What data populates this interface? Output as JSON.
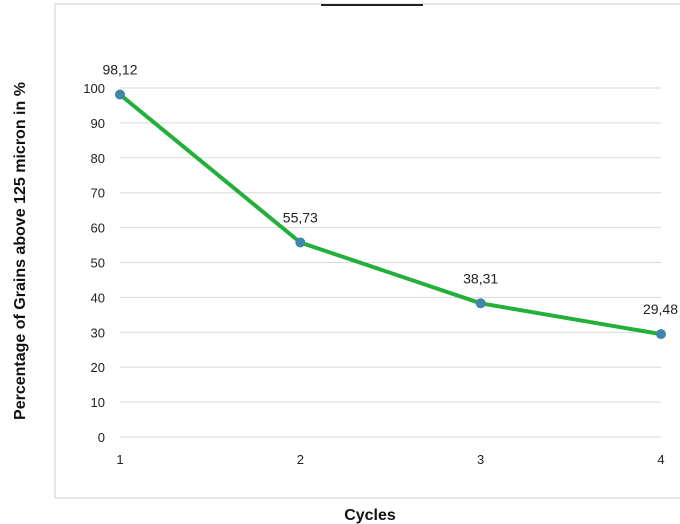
{
  "chart_data": {
    "type": "line",
    "xlabel": "Cycles",
    "ylabel": "Percentage of Grains above 125 micron in %",
    "x": [
      1,
      2,
      3,
      4
    ],
    "x_tick_labels": [
      "1",
      "2",
      "3",
      "4"
    ],
    "y_ticks": [
      0,
      10,
      20,
      30,
      40,
      50,
      60,
      70,
      80,
      90,
      100
    ],
    "ylim": [
      0,
      100
    ],
    "grid": "horizontal",
    "series": [
      {
        "values": [
          98.12,
          55.73,
          38.31,
          29.48
        ],
        "data_labels": [
          "98,12",
          "55,73",
          "38,31",
          "29,48"
        ],
        "line_color": "#22b03a",
        "marker_color": "#3f86a8"
      }
    ]
  }
}
